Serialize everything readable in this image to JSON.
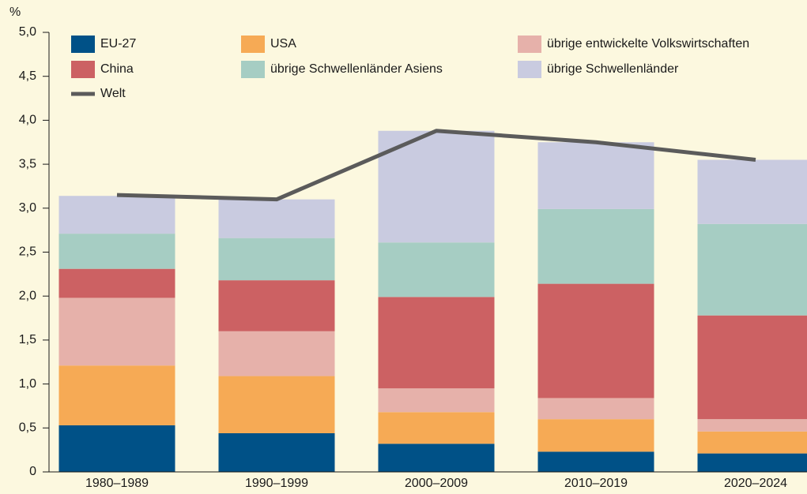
{
  "chart_data": {
    "type": "stacked-bar-line",
    "ylabel": "%",
    "categories": [
      "1980–1989",
      "1990–1999",
      "2000–2009",
      "2010–2019",
      "2020–2024"
    ],
    "series": [
      {
        "name": "EU-27",
        "color": "#005187",
        "values": [
          0.53,
          0.44,
          0.32,
          0.23,
          0.21
        ]
      },
      {
        "name": "USA",
        "color": "#f6aa55",
        "values": [
          0.68,
          0.65,
          0.36,
          0.37,
          0.25
        ]
      },
      {
        "name": "übrige entwickelte Volkswirtschaften",
        "color": "#e6b1aa",
        "values": [
          0.77,
          0.51,
          0.27,
          0.24,
          0.14
        ]
      },
      {
        "name": "China",
        "color": "#cc6163",
        "values": [
          0.33,
          0.58,
          1.04,
          1.3,
          1.18
        ]
      },
      {
        "name": "übrige Schwellenländer Asiens",
        "color": "#a6cdc3",
        "values": [
          0.4,
          0.48,
          0.62,
          0.85,
          1.04
        ]
      },
      {
        "name": "übrige Schwellenländer",
        "color": "#c9cbe0",
        "values": [
          0.43,
          0.44,
          1.27,
          0.76,
          0.73
        ]
      }
    ],
    "line_series": {
      "name": "Welt",
      "color": "#5b5b5b",
      "values": [
        3.15,
        3.1,
        3.88,
        3.75,
        3.55
      ]
    },
    "ylim": [
      0,
      5
    ],
    "yticks": [
      0,
      {
        "value": 0.5,
        "label": "0,5"
      },
      {
        "value": 1,
        "label": "1,0"
      },
      {
        "value": 1.5,
        "label": "1,5"
      },
      {
        "value": 2,
        "label": "2,0"
      },
      {
        "value": 2.5,
        "label": "2,5"
      },
      {
        "value": 3,
        "label": "3,0"
      },
      {
        "value": 3.5,
        "label": "3,5"
      },
      {
        "value": 4,
        "label": "4,0"
      },
      {
        "value": 4.5,
        "label": "4,5"
      },
      {
        "value": 5,
        "label": "5,0"
      }
    ],
    "grid": false
  }
}
